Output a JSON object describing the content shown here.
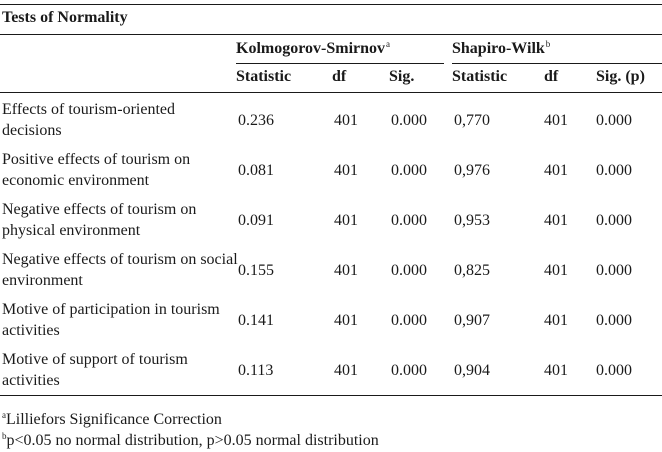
{
  "title": "Tests of Normality",
  "groups": {
    "ks": {
      "label": "Kolmogorov-Smirnov",
      "sup": "a"
    },
    "sw": {
      "label": "Shapiro-Wilk",
      "sup": "b"
    }
  },
  "columns": [
    "Statistic",
    "df",
    "Sig.",
    "Statistic",
    "df",
    "Sig. (p)"
  ],
  "rows": [
    {
      "label": "Effects of tourism-oriented decisions",
      "values": [
        "0.236",
        "401",
        "0.000",
        "0,770",
        "401",
        "0.000"
      ]
    },
    {
      "label": "Positive effects of tourism on economic environment",
      "values": [
        "0.081",
        "401",
        "0.000",
        "0,976",
        "401",
        "0.000"
      ]
    },
    {
      "label": "Negative effects of tourism on physical environment",
      "values": [
        "0.091",
        "401",
        "0.000",
        "0,953",
        "401",
        "0.000"
      ]
    },
    {
      "label": "Negative effects of tourism on social environment",
      "values": [
        "0.155",
        "401",
        "0.000",
        "0,825",
        "401",
        "0.000"
      ]
    },
    {
      "label": "Motive of participation in tourism activities",
      "values": [
        "0.141",
        "401",
        "0.000",
        "0,907",
        "401",
        "0.000"
      ]
    },
    {
      "label": "Motive of support of tourism activities",
      "values": [
        "0.113",
        "401",
        "0.000",
        "0,904",
        "401",
        "0.000"
      ]
    }
  ],
  "footnotes": [
    {
      "sup": "a",
      "text": "Lilliefors Significance Correction"
    },
    {
      "sup": "b",
      "text": "p<0.05 no normal distribution, p>0.05 normal distribution"
    }
  ]
}
